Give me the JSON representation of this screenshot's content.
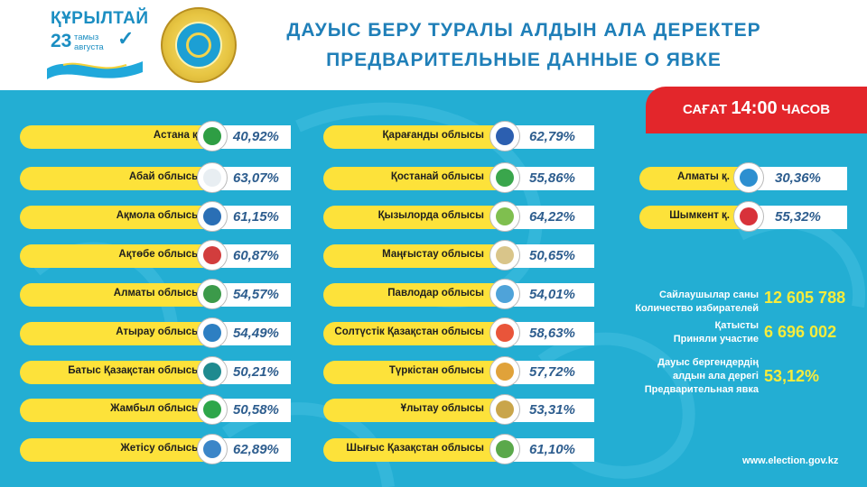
{
  "header": {
    "logo_text": "ҚҰРЫЛТАЙ",
    "logo_number": "23",
    "logo_date_kz": "тамыз",
    "logo_date_ru": "августа",
    "title_kz": "ДАУЫС БЕРУ ТУРАЛЫ АЛДЫН АЛА ДЕРЕКТЕР",
    "title_ru": "ПРЕДВАРИТЕЛЬНЫЕ ДАННЫЕ О ЯВКЕ"
  },
  "time": {
    "label_kz": "САҒАТ",
    "value": "14:00",
    "label_ru": "ЧАСОВ"
  },
  "colors": {
    "panel": "#23aed3",
    "pill": "#fde23a",
    "time_box": "#e3262b",
    "highlight": "#f8ec3b",
    "title": "#1f7fb8"
  },
  "regions_col1": [
    {
      "name": "Астана қ.",
      "value": "40,92%"
    },
    {
      "name": "Абай облысы",
      "value": "63,07%"
    },
    {
      "name": "Ақмола облысы",
      "value": "61,15%"
    },
    {
      "name": "Ақтөбе облысы",
      "value": "60,87%"
    },
    {
      "name": "Алматы облысы",
      "value": "54,57%"
    },
    {
      "name": "Атырау облысы",
      "value": "54,49%"
    },
    {
      "name": "Батыс Қазақстан облысы",
      "value": "50,21%"
    },
    {
      "name": "Жамбыл облысы",
      "value": "50,58%"
    },
    {
      "name": "Жетісу облысы",
      "value": "62,89%"
    }
  ],
  "regions_col2": [
    {
      "name": "Қарағанды облысы",
      "value": "62,79%"
    },
    {
      "name": "Қостанай облысы",
      "value": "55,86%"
    },
    {
      "name": "Қызылорда облысы",
      "value": "64,22%"
    },
    {
      "name": "Маңғыстау облысы",
      "value": "50,65%"
    },
    {
      "name": "Павлодар облысы",
      "value": "54,01%"
    },
    {
      "name": "Солтүстік Қазақстан облысы",
      "value": "58,63%"
    },
    {
      "name": "Түркістан облысы",
      "value": "57,72%"
    },
    {
      "name": "Ұлытау облысы",
      "value": "53,31%"
    },
    {
      "name": "Шығыс Қазақстан облысы",
      "value": "61,10%"
    }
  ],
  "cities": [
    {
      "name": "Алматы қ.",
      "value": "30,36%"
    },
    {
      "name": "Шымкент қ.",
      "value": "55,32%"
    }
  ],
  "stats": {
    "voters_kz": "Сайлаушылар саны",
    "voters_ru": "Количество избирателей",
    "voters_value": "12 605 788",
    "participated_kz": "Қатысты",
    "participated_ru": "Приняли участие",
    "participated_value": "6 696 002",
    "turnout_kz_1": "Дауыс бергендердің",
    "turnout_kz_2": "алдын ала дерегі",
    "turnout_ru": "Предварительная явка",
    "turnout_value": "53,12%"
  },
  "website": "www.election.gov.kz"
}
